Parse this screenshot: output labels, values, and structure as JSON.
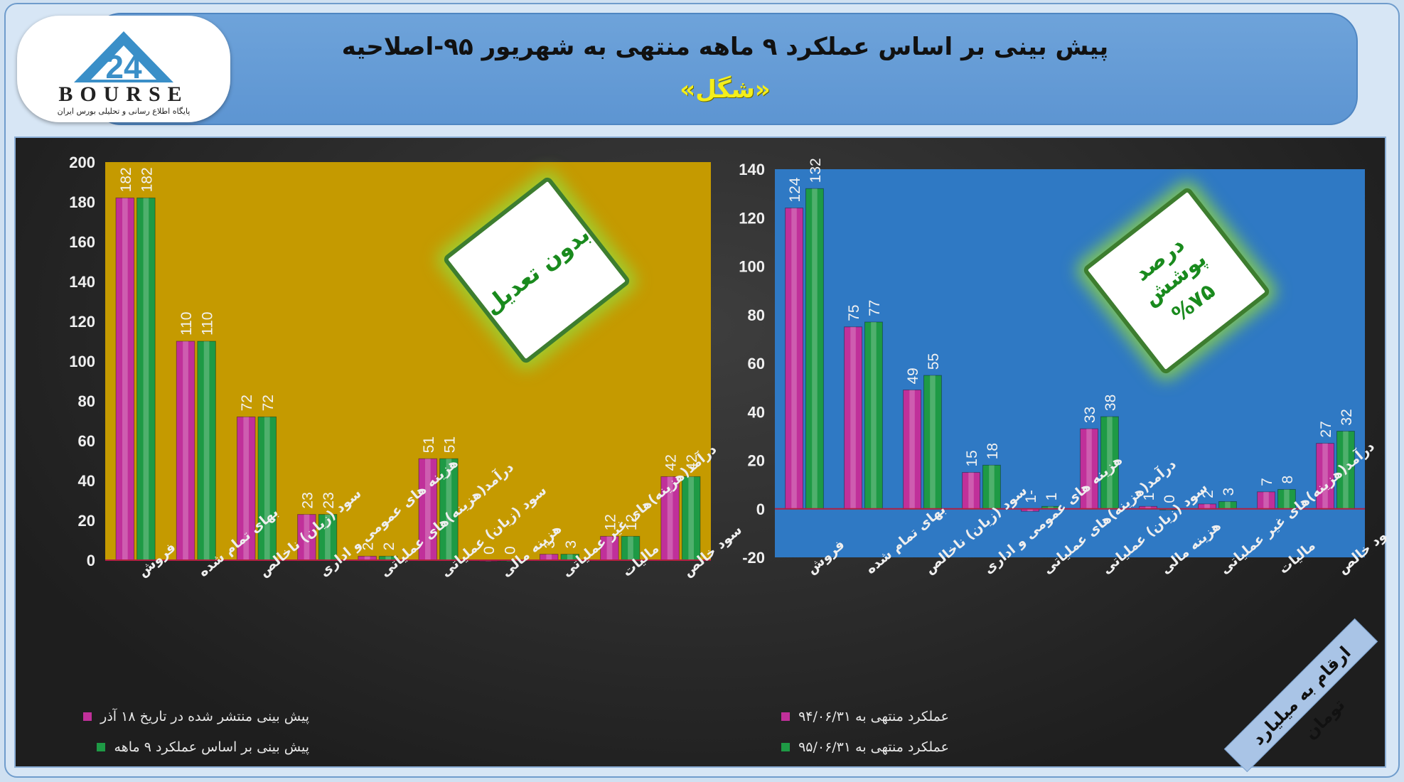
{
  "header": {
    "title_line1": "پیش بینی بر اساس عملکرد ۹ ماهه منتهی به شهریور ۹۵-اصلاحیه",
    "title_line2": "«شگل»"
  },
  "logo": {
    "text": "BOURSE",
    "subtitle": "پایگاه اطلاع رسانی و تحلیلی بورس ایران"
  },
  "stamps": {
    "left": "بدون تعدیل",
    "right_line1": "درصد پوشش",
    "right_line2": "%۷۵"
  },
  "corner_note": "ارقام به میلیارد تومان",
  "colors": {
    "series_a": "#c0309a",
    "series_b": "#1e9a45",
    "left_plot_bg": "#c59a00",
    "right_plot_bg": "#2f79c4",
    "zero_line": "#b02040"
  },
  "chart_data": [
    {
      "type": "bar",
      "categories": [
        "فروش",
        "بهای تمام شده",
        "سود (زیان) ناخالص",
        "هزینه های عمومی و اداری",
        "درآمد(هزینه)های عملیاتی",
        "سود (زیان) عملیاتی",
        "هزینه مالی",
        "درآمد(هزینه)های غیر عملیاتی",
        "مالیات",
        "سود خالص"
      ],
      "series": [
        {
          "name": "پیش بینی منتشر شده در تاریخ ۱۸ آذر",
          "values": [
            182,
            110,
            72,
            23,
            2,
            51,
            0,
            3,
            12,
            42
          ]
        },
        {
          "name": "پیش بینی بر اساس عملکرد ۹ ماهه",
          "values": [
            182,
            110,
            72,
            23,
            2,
            51,
            0,
            3,
            12,
            42
          ]
        }
      ],
      "yticks": [
        0,
        20,
        40,
        60,
        80,
        100,
        120,
        140,
        160,
        180,
        200
      ],
      "ylim": [
        0,
        200
      ],
      "legend": "bottom",
      "grid": false
    },
    {
      "type": "bar",
      "categories": [
        "فروش",
        "بهای تمام شده",
        "سود (زیان) ناخالص",
        "هزینه های عمومی و اداری",
        "درآمد(هزینه)های عملیاتی",
        "سود (زیان) عملیاتی",
        "هزینه مالی",
        "درآمد(هزینه)های غیر عملیاتی",
        "مالیات",
        "سود خالص"
      ],
      "series": [
        {
          "name": "عملکرد منتهی به ۹۴/۰۶/۳۱",
          "values": [
            124,
            75,
            49,
            15,
            -1,
            33,
            1,
            2,
            7,
            27
          ],
          "labels": [
            "124",
            "75",
            "49",
            "15",
            "1-",
            "33",
            "1",
            "2",
            "7",
            "27"
          ]
        },
        {
          "name": "عملکرد منتهی به ۹۵/۰۶/۳۱",
          "values": [
            132,
            77,
            55,
            18,
            1,
            38,
            0,
            3,
            8,
            32
          ],
          "labels": [
            "132",
            "77",
            "55",
            "18",
            "1",
            "38",
            "0",
            "3",
            "8",
            "32"
          ]
        }
      ],
      "yticks": [
        -20,
        0,
        20,
        40,
        60,
        80,
        100,
        120,
        140
      ],
      "ylim": [
        -20,
        140
      ],
      "legend": "bottom",
      "grid": false
    }
  ]
}
